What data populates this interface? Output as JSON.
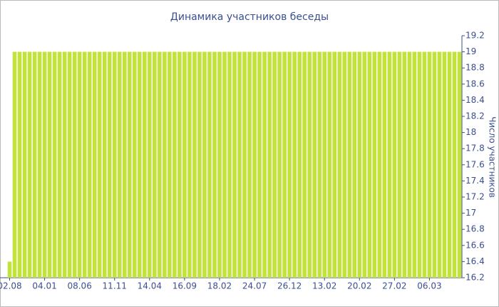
{
  "chart_data": {
    "type": "bar",
    "title": "Динамика участников беседы",
    "y_label": "Число участников",
    "categories": [
      "02.08",
      null,
      null,
      null,
      null,
      null,
      null,
      "04.01",
      null,
      null,
      null,
      null,
      null,
      null,
      "08.06",
      null,
      null,
      null,
      null,
      null,
      null,
      "11.11",
      null,
      null,
      null,
      null,
      null,
      null,
      "14.04",
      null,
      null,
      null,
      null,
      null,
      null,
      "16.09",
      null,
      null,
      null,
      null,
      null,
      null,
      "18.02",
      null,
      null,
      null,
      null,
      null,
      null,
      "24.07",
      null,
      null,
      null,
      null,
      null,
      null,
      "26.12",
      null,
      null,
      null,
      null,
      null,
      null,
      "13.02",
      null,
      null,
      null,
      null,
      null,
      null,
      "20.02",
      null,
      null,
      null,
      null,
      null,
      null,
      "27.02",
      null,
      null,
      null,
      null,
      null,
      null,
      "06.03",
      null,
      null,
      null,
      null,
      null,
      null
    ],
    "values": [
      16.4,
      19,
      19,
      19,
      19,
      19,
      19,
      19,
      19,
      19,
      19,
      19,
      19,
      19,
      19,
      19,
      19,
      19,
      19,
      19,
      19,
      19,
      19,
      19,
      19,
      19,
      19,
      19,
      19,
      19,
      19,
      19,
      19,
      19,
      19,
      19,
      19,
      19,
      19,
      19,
      19,
      19,
      19,
      19,
      19,
      19,
      19,
      19,
      19,
      19,
      19,
      19,
      19,
      19,
      19,
      19,
      19,
      19,
      19,
      19,
      19,
      19,
      19,
      19,
      19,
      19,
      19,
      19,
      19,
      19,
      19,
      19,
      19,
      19,
      19,
      19,
      19,
      19,
      19,
      19,
      19,
      19,
      19,
      19,
      19,
      19,
      19,
      19,
      19,
      19,
      19
    ],
    "color": "#c3e23c",
    "ylim": [
      16.2,
      19.2
    ],
    "yticks": [
      16.2,
      16.4,
      16.6,
      16.8,
      17,
      17.2,
      17.4,
      17.6,
      17.8,
      18,
      18.2,
      18.4,
      18.6,
      18.8,
      19,
      19.2
    ],
    "y_axis_side": "right"
  }
}
